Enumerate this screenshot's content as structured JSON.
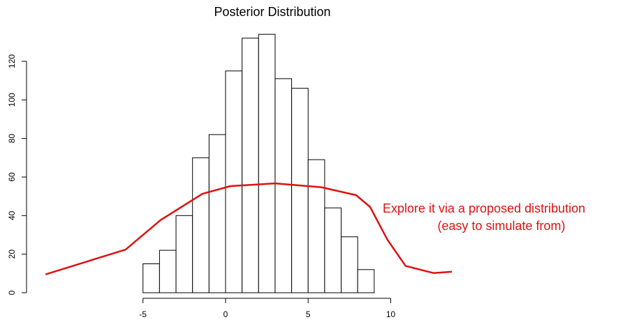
{
  "chart_data": {
    "type": "histogram",
    "title": "Posterior Distribution",
    "bins": [
      -5,
      -4,
      -3,
      -2,
      -1,
      0,
      1,
      2,
      3,
      4,
      5,
      6,
      7,
      8,
      9
    ],
    "values": [
      15,
      22,
      40,
      70,
      82,
      115,
      132,
      134,
      111,
      106,
      69,
      44,
      29,
      12
    ],
    "color": "#ffffff",
    "xlim": [
      -11,
      14
    ],
    "xticks": [
      -5,
      0,
      5,
      10
    ],
    "ylim": [
      0,
      140
    ],
    "yticks": [
      0,
      20,
      40,
      60,
      80,
      100,
      120
    ],
    "curve": {
      "color": "#dd1111",
      "x": [
        -10.9,
        -6.05,
        -3.93,
        -1.4,
        0.3,
        3.0,
        5.8,
        7.9,
        8.75,
        9.8,
        10.9,
        12.6,
        13.7
      ],
      "values": [
        9.5,
        22.4,
        37.7,
        51.3,
        55.3,
        56.7,
        54.7,
        50.6,
        44.5,
        27.5,
        13.9,
        10.2,
        10.9
      ]
    },
    "annotation": [
      "Explore it via a proposed distribution",
      "(easy to simulate from)"
    ]
  }
}
